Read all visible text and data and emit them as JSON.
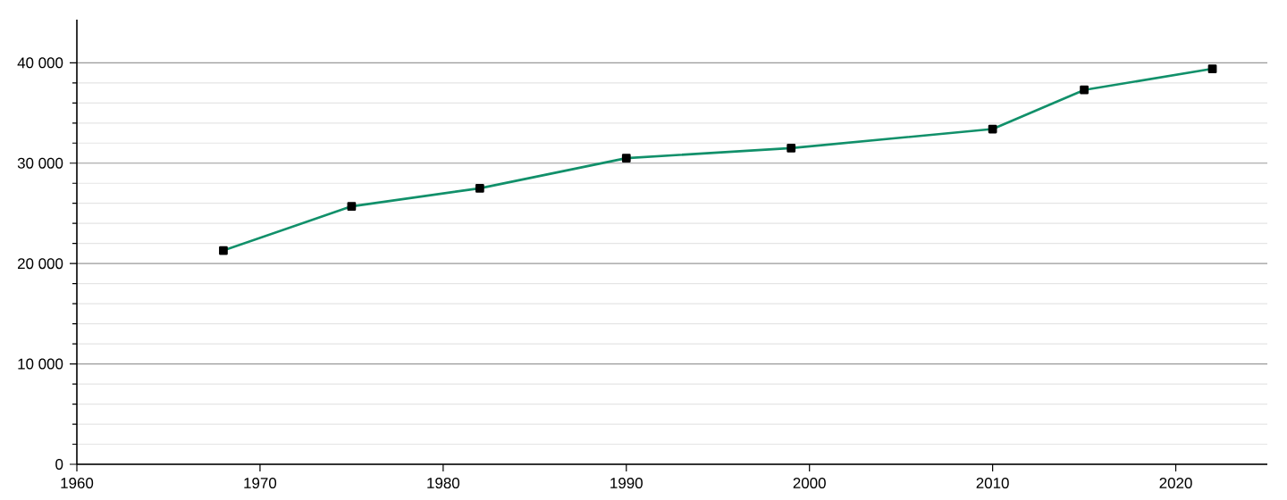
{
  "chart_data": {
    "type": "line",
    "x": [
      1968,
      1975,
      1982,
      1990,
      1999,
      2010,
      2015,
      2022
    ],
    "series": [
      {
        "color": "#11906a",
        "values": [
          21300,
          25700,
          27500,
          30500,
          31500,
          33400,
          37300,
          39400
        ]
      }
    ],
    "xlim": [
      1960,
      2025
    ],
    "xticks": [
      1960,
      1970,
      1980,
      1990,
      2000,
      2010,
      2020
    ],
    "ylim": [
      0,
      44300
    ],
    "yticks": [
      0,
      {
        "value": 10000,
        "label": "10 000"
      },
      {
        "value": 20000,
        "label": "20 000"
      },
      {
        "value": 30000,
        "label": "30 000"
      },
      {
        "value": 40000,
        "label": "40 000"
      }
    ],
    "grid": "y",
    "marker": "square",
    "line_style": "solid"
  }
}
